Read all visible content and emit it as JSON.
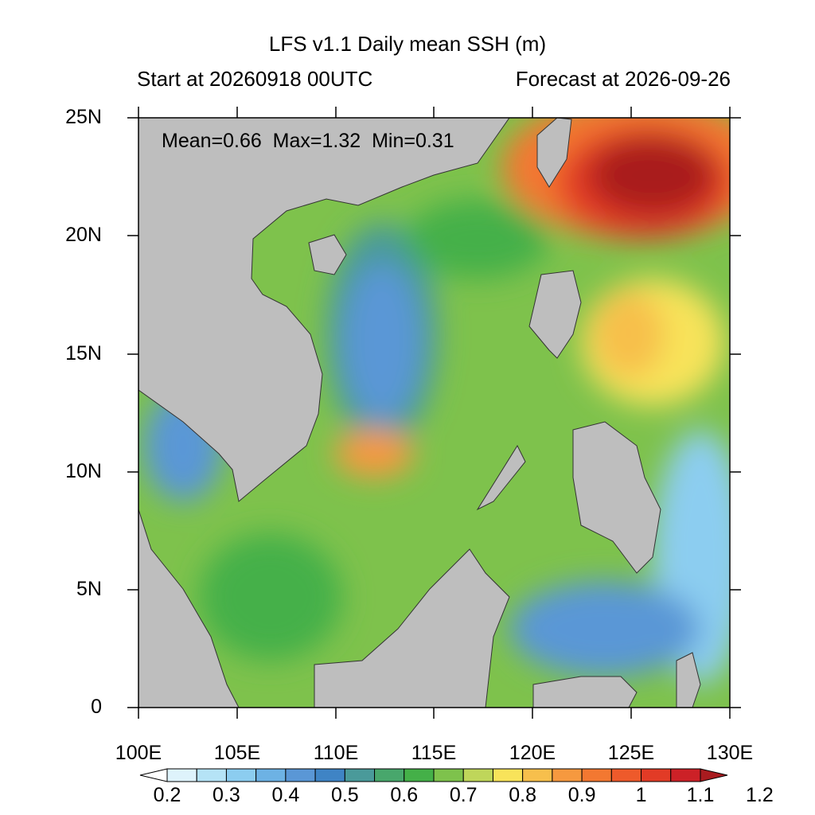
{
  "title": "LFS v1.1 Daily mean SSH (m)",
  "subtitle_left": "Start at 20260918 00UTC",
  "subtitle_right": "Forecast at 2026-09-26",
  "stats": {
    "text": "Mean=0.66  Max=1.32  Min=0.31"
  },
  "y_ticks": [
    "25N",
    "20N",
    "15N",
    "10N",
    "5N",
    "0"
  ],
  "x_ticks": [
    "100E",
    "105E",
    "110E",
    "115E",
    "120E",
    "125E",
    "130E"
  ],
  "colorbar": {
    "labels": [
      "0.2",
      "0.3",
      "0.4",
      "0.5",
      "0.6",
      "0.7",
      "0.8",
      "0.9",
      "1",
      "1.1",
      "1.2"
    ],
    "colors": [
      "#ffffff",
      "#def3fb",
      "#b5e3f6",
      "#8ccdf0",
      "#6db2e4",
      "#5a97d6",
      "#3f84c5",
      "#4a9a9a",
      "#48a76c",
      "#44b048",
      "#7ec24c",
      "#bfd65a",
      "#f8e35a",
      "#f7bf4c",
      "#f6993f",
      "#f37831",
      "#ee5a2b",
      "#e23b26",
      "#cc2127",
      "#a91b1f"
    ],
    "land_color": "#bebebe"
  }
}
